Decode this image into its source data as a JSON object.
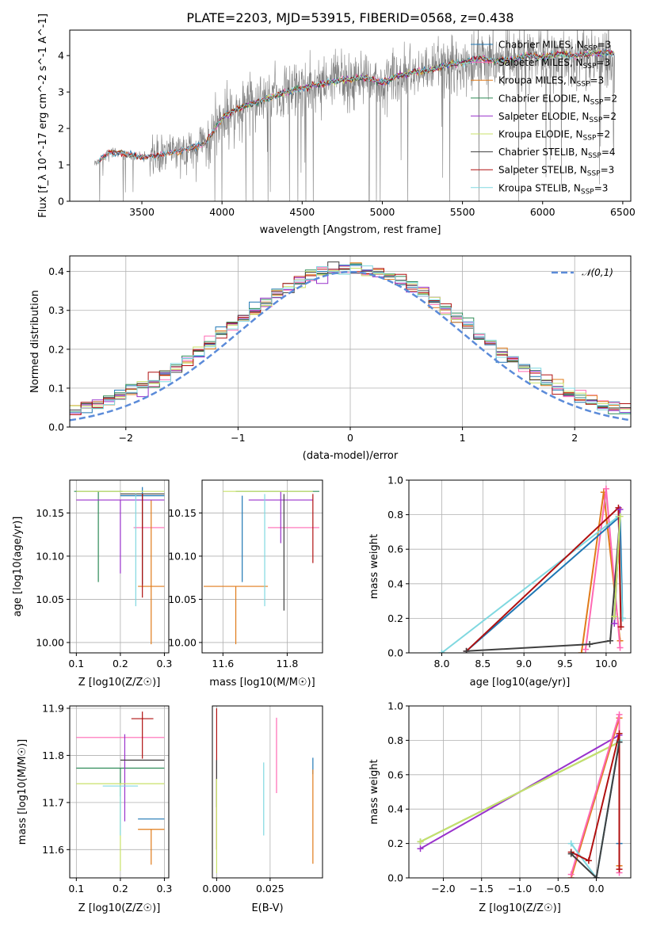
{
  "figure_title": "PLATE=2203, MJD=53915, FIBERID=0568, z=0.438",
  "models": [
    {
      "name": "Chabrier MILES, N$_{SSP}$=3",
      "base": "Chabrier MILES, N",
      "sub": "SSP",
      "tail": "=3",
      "color": "#1f77b4"
    },
    {
      "name": "Salpeter MILES, N$_{SSP}$=3",
      "base": "Salpeter MILES, N",
      "sub": "SSP",
      "tail": "=3",
      "color": "#ff69b4"
    },
    {
      "name": "Kroupa MILES, N$_{SSP}$=3",
      "base": "Kroupa MILES, N",
      "sub": "SSP",
      "tail": "=3",
      "color": "#e07b1a"
    },
    {
      "name": "Chabrier ELODIE, N$_{SSP}$=2",
      "base": "Chabrier ELODIE, N",
      "sub": "SSP",
      "tail": "=2",
      "color": "#2e8b57"
    },
    {
      "name": "Salpeter ELODIE, N$_{SSP}$=2",
      "base": "Salpeter ELODIE, N",
      "sub": "SSP",
      "tail": "=2",
      "color": "#9932cc"
    },
    {
      "name": "Kroupa ELODIE, N$_{SSP}$=2",
      "base": "Kroupa ELODIE, N",
      "sub": "SSP",
      "tail": "=2",
      "color": "#c8e26a"
    },
    {
      "name": "Chabrier STELIB, N$_{SSP}$=4",
      "base": "Chabrier STELIB, N",
      "sub": "SSP",
      "tail": "=4",
      "color": "#404040"
    },
    {
      "name": "Salpeter STELIB, N$_{SSP}$=3",
      "base": "Salpeter STELIB, N",
      "sub": "SSP",
      "tail": "=3",
      "color": "#b01010"
    },
    {
      "name": "Kroupa STELIB, N$_{SSP}$=3",
      "base": "Kroupa STELIB, N",
      "sub": "SSP",
      "tail": "=3",
      "color": "#80d8e0"
    }
  ],
  "chart_data": [
    {
      "id": "spectrum",
      "type": "line",
      "title": "PLATE=2203, MJD=53915, FIBERID=0568, z=0.438",
      "xlabel": "wavelength [Angstrom, rest frame]",
      "ylabel": "Flux [f_λ 10^-17 erg cm^-2 s^-1 A^-1]",
      "xlim": [
        3050,
        6550
      ],
      "ylim": [
        0,
        4.7
      ],
      "xticks": [
        3500,
        4000,
        4500,
        5000,
        5500,
        6000,
        6500
      ],
      "yticks": [
        0,
        1,
        2,
        3,
        4
      ],
      "legend": "top-right",
      "continuum_knots": {
        "wavelength": [
          3200,
          3300,
          3400,
          3500,
          3600,
          3700,
          3800,
          3900,
          4000,
          4100,
          4200,
          4300,
          4400,
          4500,
          4600,
          4700,
          4800,
          4900,
          5000,
          5100,
          5200,
          5300,
          5400,
          5500,
          5600,
          5700,
          5800,
          5900,
          6000,
          6100,
          6200,
          6300,
          6400,
          6450
        ],
        "flux": [
          1.0,
          1.35,
          1.3,
          1.2,
          1.25,
          1.35,
          1.45,
          1.6,
          2.3,
          2.55,
          2.7,
          2.85,
          3.0,
          3.1,
          3.2,
          3.3,
          3.35,
          3.4,
          3.25,
          3.45,
          3.55,
          3.6,
          3.75,
          3.8,
          3.95,
          3.85,
          3.9,
          4.0,
          3.95,
          4.05,
          4.0,
          4.05,
          4.1,
          4.05
        ]
      },
      "data_color": "#808080"
    },
    {
      "id": "residuals",
      "type": "histogram",
      "xlabel": "(data-model)/error",
      "ylabel": "Normed distribution",
      "xlim": [
        -2.5,
        2.5
      ],
      "ylim": [
        0,
        0.44
      ],
      "xticks": [
        -2,
        -1,
        0,
        1,
        2
      ],
      "yticks": [
        0.0,
        0.1,
        0.2,
        0.3,
        0.4
      ],
      "bin_width": 0.1,
      "reference": {
        "name": "𝒩(0,1)",
        "mean": 0,
        "sigma": 1,
        "color": "#5b8bd9"
      },
      "legend": "top-right"
    },
    {
      "id": "age_vs_Z",
      "type": "errorbar",
      "xlabel": "Z [log10(Z/Z☉)]",
      "ylabel": "age [log10(age/yr)]",
      "xlim": [
        0.085,
        0.31
      ],
      "ylim": [
        9.988,
        10.188
      ],
      "xticks": [
        0.1,
        0.2,
        0.3
      ],
      "yticks": [
        10.0,
        10.05,
        10.1,
        10.15
      ],
      "points": [
        {
          "model": 0,
          "x": 0.25,
          "xerr": 0.05,
          "y": 10.17,
          "yerr": [
            0.005,
            0.01
          ]
        },
        {
          "model": 1,
          "x": 0.265,
          "xerr": 0.035,
          "y": 10.133,
          "yerr": 0.0
        },
        {
          "model": 2,
          "x": 0.27,
          "xerr": 0.03,
          "y": 10.065,
          "yerr": [
            0.067,
            0.1
          ]
        },
        {
          "model": 3,
          "x": 0.15,
          "xerr": 0.055,
          "y": 10.175,
          "yerr": [
            0.105,
            0.0
          ]
        },
        {
          "model": 4,
          "x": 0.2,
          "xerr": 0.1,
          "y": 10.165,
          "yerr": [
            0.085,
            0.0
          ]
        },
        {
          "model": 5,
          "x": 0.2,
          "xerr": 0.1,
          "y": 10.175,
          "yerr": [
            0.0,
            0.0
          ]
        },
        {
          "model": 6,
          "x": 0.25,
          "xerr": 0.05,
          "y": 10.172,
          "yerr": [
            0.105,
            0.0
          ]
        },
        {
          "model": 7,
          "x": 0.25,
          "xerr": 0.0,
          "y": 10.172,
          "yerr": [
            0.12,
            0.0
          ]
        },
        {
          "model": 8,
          "x": 0.235,
          "xerr": 0.0,
          "y": 10.172,
          "yerr": [
            0.13,
            0.0
          ]
        }
      ]
    },
    {
      "id": "age_vs_mass",
      "type": "errorbar",
      "xlabel": "mass [log10(M/M☉)]",
      "ylabel": "",
      "xlim": [
        11.535,
        11.91
      ],
      "ylim": [
        9.988,
        10.188
      ],
      "xticks": [
        11.6,
        11.8
      ],
      "yticks": [
        10.0,
        10.05,
        10.1,
        10.15
      ],
      "points": [
        {
          "model": 0,
          "x": 11.66,
          "xerr": 0.0,
          "y": 10.07,
          "yerr": [
            0.0,
            0.1
          ]
        },
        {
          "model": 1,
          "x": 11.82,
          "xerr": 0.08,
          "y": 10.133,
          "yerr": [
            0.0,
            0.0
          ]
        },
        {
          "model": 2,
          "x": 11.64,
          "xerr": 0.1,
          "y": 10.065,
          "yerr": [
            0.067,
            0.0
          ]
        },
        {
          "model": 3,
          "x": 11.77,
          "xerr": 0.13,
          "y": 10.175,
          "yerr": [
            0.0,
            0.0
          ]
        },
        {
          "model": 4,
          "x": 11.78,
          "xerr": 0.1,
          "y": 10.165,
          "yerr": [
            0.05,
            0.01
          ]
        },
        {
          "model": 5,
          "x": 11.74,
          "xerr": 0.14,
          "y": 10.175,
          "yerr": [
            0.0,
            0.0
          ]
        },
        {
          "model": 6,
          "x": 11.79,
          "xerr": 0.0,
          "y": 10.172,
          "yerr": [
            0.135,
            0.0
          ]
        },
        {
          "model": 7,
          "x": 11.88,
          "xerr": 0.0,
          "y": 10.172,
          "yerr": [
            0.08,
            0.0
          ]
        },
        {
          "model": 8,
          "x": 11.73,
          "xerr": 0.0,
          "y": 10.172,
          "yerr": [
            0.13,
            0.0
          ]
        }
      ]
    },
    {
      "id": "mass_weight_vs_age",
      "type": "line",
      "xlabel": "age [log10(age/yr)]",
      "ylabel": "mass weight",
      "xlim": [
        7.6,
        10.3
      ],
      "ylim": [
        0,
        1.0
      ],
      "xticks": [
        8.0,
        8.5,
        9.0,
        9.5,
        10.0
      ],
      "yticks": [
        0.0,
        0.2,
        0.4,
        0.6,
        0.8,
        1.0
      ],
      "series": [
        {
          "model": 2,
          "x": [
            9.7,
            9.97,
            10.17
          ],
          "y": [
            0.0,
            0.93,
            0.07
          ]
        },
        {
          "model": 1,
          "x": [
            9.75,
            10.0,
            10.17
          ],
          "y": [
            0.02,
            0.95,
            0.03
          ]
        },
        {
          "model": 0,
          "x": [
            8.3,
            10.17,
            10.2
          ],
          "y": [
            0.01,
            0.79,
            0.2
          ]
        },
        {
          "model": 8,
          "x": [
            8.0,
            10.15,
            10.2
          ],
          "y": [
            0.0,
            0.79,
            0.2
          ]
        },
        {
          "model": 7,
          "x": [
            8.3,
            10.15,
            10.18
          ],
          "y": [
            0.01,
            0.84,
            0.15
          ]
        },
        {
          "model": 6,
          "x": [
            8.3,
            9.8,
            10.05,
            10.17
          ],
          "y": [
            0.01,
            0.05,
            0.07,
            0.79
          ]
        },
        {
          "model": 4,
          "x": [
            10.1,
            10.17
          ],
          "y": [
            0.17,
            0.83
          ]
        },
        {
          "model": 3,
          "x": [
            10.1,
            10.17
          ],
          "y": [
            0.21,
            0.79
          ]
        },
        {
          "model": 5,
          "x": [
            10.1,
            10.17
          ],
          "y": [
            0.21,
            0.79
          ]
        }
      ]
    },
    {
      "id": "mass_vs_Z",
      "type": "errorbar",
      "xlabel": "Z [log10(Z/Z☉)]",
      "ylabel": "mass [log10(M/M☉)]",
      "xlim": [
        0.085,
        0.31
      ],
      "ylim": [
        11.54,
        11.905
      ],
      "xticks": [
        0.1,
        0.2,
        0.3
      ],
      "yticks": [
        11.6,
        11.7,
        11.8,
        11.9
      ],
      "points": [
        {
          "model": 0,
          "x": 0.27,
          "xerr": 0.03,
          "y": 11.665,
          "yerr": [
            0.0,
            0.0
          ]
        },
        {
          "model": 1,
          "x": 0.2,
          "xerr": 0.1,
          "y": 11.838,
          "yerr": [
            0.0,
            0.0
          ]
        },
        {
          "model": 2,
          "x": 0.27,
          "xerr": 0.03,
          "y": 11.643,
          "yerr": [
            0.075,
            0.0
          ]
        },
        {
          "model": 3,
          "x": 0.2,
          "xerr": 0.1,
          "y": 11.773,
          "yerr": [
            0.06,
            0.0
          ]
        },
        {
          "model": 4,
          "x": 0.21,
          "xerr": 0.0,
          "y": 11.77,
          "yerr": [
            0.11,
            0.075
          ]
        },
        {
          "model": 5,
          "x": 0.2,
          "xerr": 0.1,
          "y": 11.74,
          "yerr": [
            0.185,
            0.0
          ]
        },
        {
          "model": 6,
          "x": 0.25,
          "xerr": 0.05,
          "y": 11.79,
          "yerr": [
            0.0,
            0.0
          ]
        },
        {
          "model": 7,
          "x": 0.25,
          "xerr": 0.025,
          "y": 11.878,
          "yerr": [
            0.085,
            0.015
          ]
        },
        {
          "model": 8,
          "x": 0.2,
          "xerr": 0.04,
          "y": 11.735,
          "yerr": [
            0.105,
            0.0
          ]
        }
      ]
    },
    {
      "id": "mass_vs_EBV",
      "type": "errorbar",
      "xlabel": "E(B-V)",
      "ylabel": "",
      "xlim": [
        -0.002,
        0.0495
      ],
      "ylim": [
        11.54,
        11.905
      ],
      "xticks": [
        0.0,
        0.025
      ],
      "points": [
        {
          "model": 7,
          "x": 0.0,
          "xerr": 0.0,
          "y": 11.8,
          "yerr": [
            0.2,
            0.1
          ]
        },
        {
          "model": 6,
          "x": 0.0,
          "xerr": 0.0,
          "y": 11.78,
          "yerr": [
            0.09,
            0.01
          ]
        },
        {
          "model": 5,
          "x": 0.0,
          "xerr": 0.0,
          "y": 11.7,
          "yerr": [
            0.15,
            0.05
          ]
        },
        {
          "model": 1,
          "x": 0.028,
          "xerr": 0.0,
          "y": 11.82,
          "yerr": [
            0.1,
            0.06
          ]
        },
        {
          "model": 8,
          "x": 0.022,
          "xerr": 0.0,
          "y": 11.7,
          "yerr": [
            0.07,
            0.085
          ]
        },
        {
          "model": 0,
          "x": 0.045,
          "xerr": 0.0,
          "y": 11.78,
          "yerr": [
            0.02,
            0.015
          ]
        },
        {
          "model": 2,
          "x": 0.045,
          "xerr": 0.0,
          "y": 11.67,
          "yerr": [
            0.1,
            0.1
          ]
        }
      ]
    },
    {
      "id": "mass_weight_vs_Z",
      "type": "line",
      "xlabel": "Z [log10(Z/Z☉)]",
      "ylabel": "mass weight",
      "xlim": [
        -2.45,
        0.45
      ],
      "ylim": [
        0,
        1.0
      ],
      "xticks": [
        -2.0,
        -1.5,
        -1.0,
        -0.5,
        0.0
      ],
      "yticks": [
        0.0,
        0.2,
        0.4,
        0.6,
        0.8,
        1.0
      ],
      "series": [
        {
          "model": 4,
          "x": [
            -2.3,
            0.3
          ],
          "y": [
            0.17,
            0.83
          ]
        },
        {
          "model": 3,
          "x": [
            -2.3,
            0.3
          ],
          "y": [
            0.21,
            0.79
          ]
        },
        {
          "model": 5,
          "x": [
            -2.3,
            0.3
          ],
          "y": [
            0.21,
            0.79
          ]
        },
        {
          "model": 2,
          "x": [
            -0.33,
            0.3,
            0.3
          ],
          "y": [
            0.0,
            0.93,
            0.07
          ]
        },
        {
          "model": 1,
          "x": [
            -0.33,
            0.3,
            0.3
          ],
          "y": [
            0.02,
            0.95,
            0.03
          ]
        },
        {
          "model": 0,
          "x": [
            0.0,
            0.3,
            0.3
          ],
          "y": [
            0.0,
            0.79,
            0.2
          ]
        },
        {
          "model": 8,
          "x": [
            -0.33,
            0.0,
            0.3
          ],
          "y": [
            0.2,
            0.0,
            0.8
          ]
        },
        {
          "model": 7,
          "x": [
            -0.33,
            -0.1,
            0.3,
            0.3
          ],
          "y": [
            0.15,
            0.1,
            0.84,
            0.05
          ]
        },
        {
          "model": 6,
          "x": [
            -0.33,
            0.0,
            0.3
          ],
          "y": [
            0.14,
            0.0,
            0.79
          ]
        }
      ]
    }
  ]
}
